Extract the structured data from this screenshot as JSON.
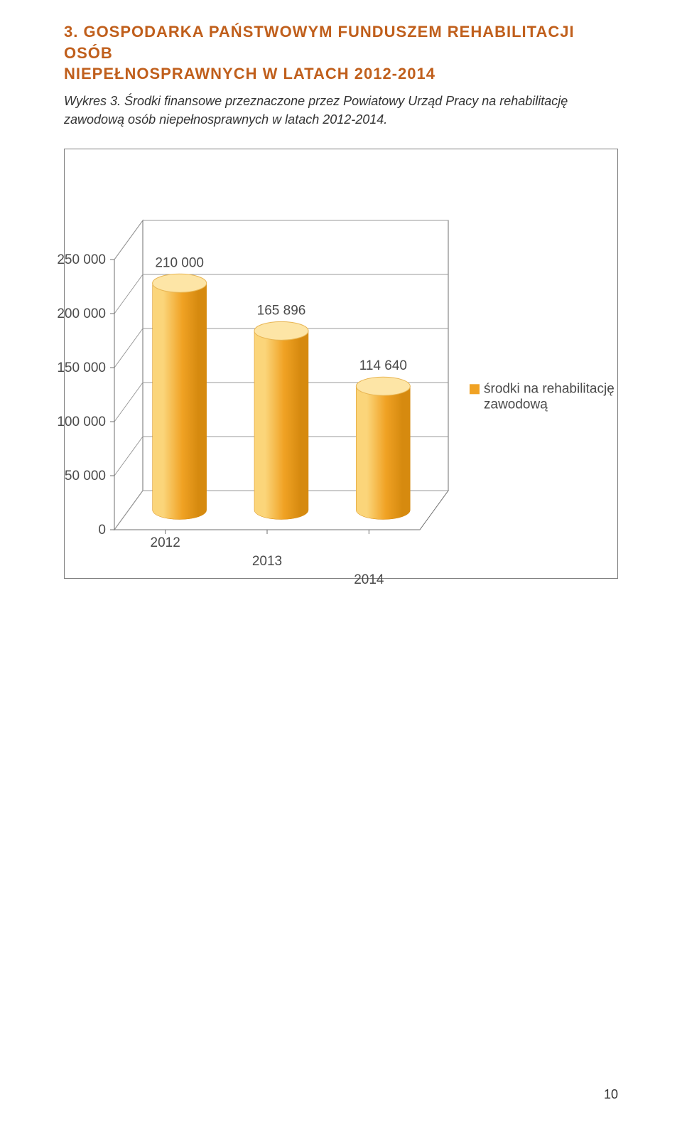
{
  "heading": {
    "line1": "3. GOSPODARKA PAŃSTWOWYM FUNDUSZEM REHABILITACJI OSÓB",
    "line2": "NIEPEŁNOSPRAWNYCH W LATACH 2012-2014"
  },
  "caption": {
    "lead": "Wykres 3. ",
    "rest": "Środki finansowe przeznaczone przez Powiatowy Urząd Pracy na rehabilitację zawodową osób niepełnosprawnych w latach 2012-2014."
  },
  "chart": {
    "type": "3d-cylinder-bar",
    "categories": [
      "2012",
      "2013",
      "2014"
    ],
    "values": [
      210000,
      165896,
      114640
    ],
    "value_labels": [
      "210 000",
      "165 896",
      "114 640"
    ],
    "ylim": [
      0,
      250000
    ],
    "ytick_step": 50000,
    "yticks": [
      "0",
      "50 000",
      "100 000",
      "150 000",
      "200 000",
      "250 000"
    ],
    "legend_label": "środki na rehabilitację zawodową",
    "legend_marker_color": "#f0a224",
    "bar_top_color": "#fde5a6",
    "bar_top_stroke": "#e8b552",
    "bar_side_light": "#fbd57a",
    "bar_side_dark": "#d68a0f",
    "bar_mid": "#f0a224",
    "grid_color": "#9a9a9a",
    "axis_color": "#6f6f6f",
    "background_color": "#ffffff",
    "label_color": "#4a4a4a",
    "label_fontsize": 19,
    "tick_fontsize": 19
  },
  "page_number": "10"
}
